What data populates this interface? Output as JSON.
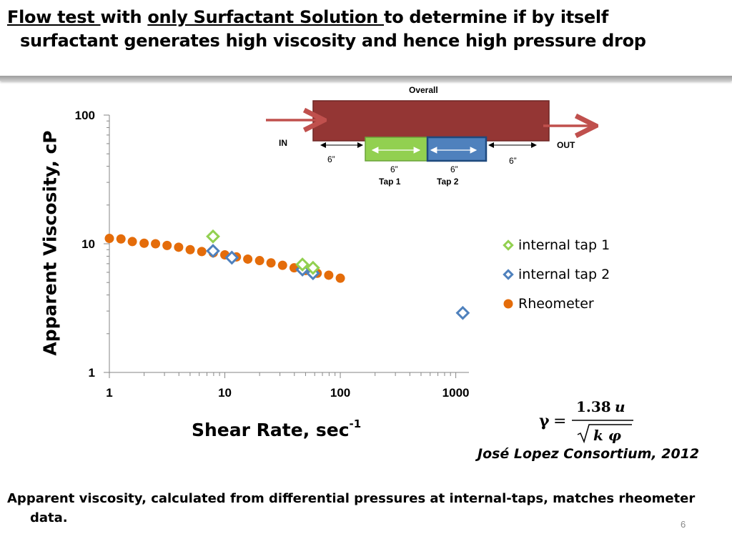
{
  "title": {
    "part1": "Flow test ",
    "part2": " with ",
    "part3": "only Surfactant Solution ",
    "part4": "to determine if by itself",
    "line2": "surfactant generates high viscosity and hence high pressure drop"
  },
  "diagram": {
    "overall_label": "Overall",
    "in_label": "IN",
    "out_label": "OUT",
    "dim_left": "6”",
    "dim_tap1": "6”",
    "dim_tap2": "6”",
    "dim_right": "6”",
    "tap1_label": "Tap 1",
    "tap2_label": "Tap 2",
    "colors": {
      "pipe": "#943634",
      "tap1": "#92d050",
      "tap2": "#4f81bd",
      "arrow": "#c0504d"
    }
  },
  "chart_data": {
    "type": "scatter",
    "xlabel": "Shear Rate,   sec",
    "xlabel_sup": "-1",
    "ylabel": "Apparent Viscosity, cP",
    "x_scale": "log",
    "y_scale": "log",
    "xlim": [
      1,
      1300
    ],
    "ylim": [
      1,
      100
    ],
    "x_ticks": [
      1,
      10,
      100,
      1000
    ],
    "x_tick_labels": [
      "1",
      "10",
      "100",
      "1000"
    ],
    "y_ticks": [
      1,
      10,
      100
    ],
    "y_tick_labels": [
      "1",
      "10",
      "100"
    ],
    "grid": false,
    "legend_position": "right",
    "series": [
      {
        "name": "internal tap 1",
        "marker": "diamond",
        "color": "#92d050",
        "points": [
          [
            7.9,
            11.4
          ],
          [
            47,
            6.9
          ],
          [
            58,
            6.5
          ]
        ]
      },
      {
        "name": "internal tap 2",
        "marker": "diamond",
        "color": "#4f81bd",
        "points": [
          [
            7.9,
            8.8
          ],
          [
            11.5,
            7.8
          ],
          [
            47,
            6.3
          ],
          [
            58,
            5.9
          ],
          [
            1150,
            2.9
          ]
        ]
      },
      {
        "name": "Rheometer",
        "marker": "circle",
        "color": "#e46c0a",
        "points": [
          [
            1.0,
            11.0
          ],
          [
            1.26,
            10.9
          ],
          [
            1.58,
            10.4
          ],
          [
            2.0,
            10.1
          ],
          [
            2.51,
            10.0
          ],
          [
            3.16,
            9.7
          ],
          [
            3.98,
            9.4
          ],
          [
            5.01,
            9.0
          ],
          [
            6.31,
            8.7
          ],
          [
            7.94,
            8.5
          ],
          [
            10.0,
            8.2
          ],
          [
            12.6,
            7.9
          ],
          [
            15.8,
            7.6
          ],
          [
            20.0,
            7.4
          ],
          [
            25.1,
            7.1
          ],
          [
            31.6,
            6.8
          ],
          [
            39.8,
            6.5
          ],
          [
            50.1,
            6.2
          ],
          [
            63.1,
            5.9
          ],
          [
            79.4,
            5.7
          ],
          [
            100,
            5.4
          ]
        ]
      }
    ]
  },
  "citation": "José Lopez Consortium, 2012",
  "footnote": {
    "line1": "Apparent viscosity, calculated from  differential pressures at internal-taps,  matches rheometer",
    "line2": "data."
  },
  "slide_number": "6"
}
